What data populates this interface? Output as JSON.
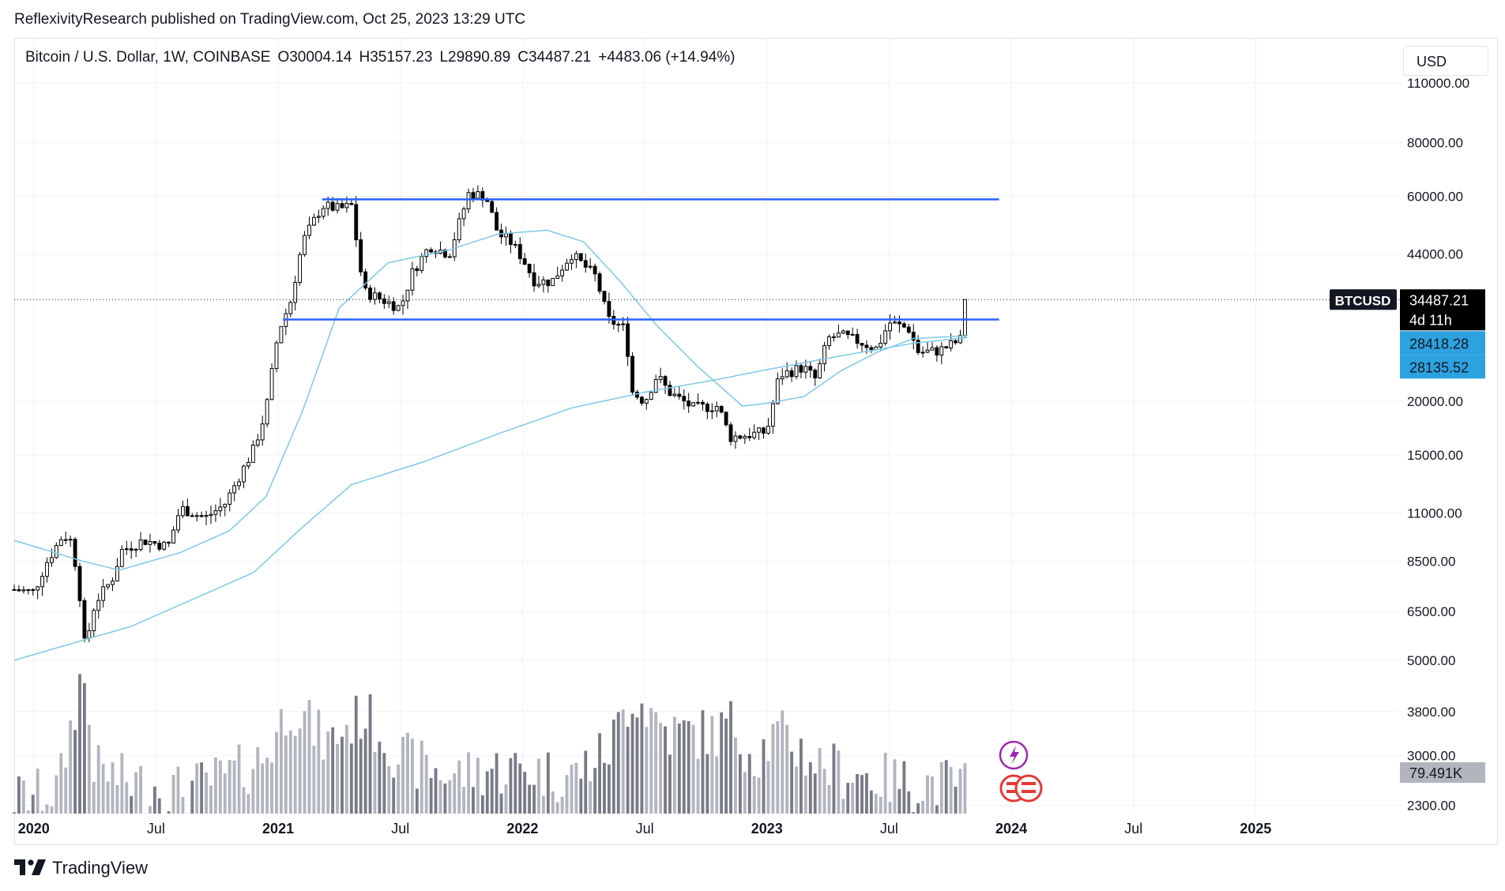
{
  "header": {
    "published_by": "ReflexivityResearch published on TradingView.com, Oct 25, 2023 13:29 UTC"
  },
  "legend": {
    "symbol": "Bitcoin / U.S. Dollar, 1W, COINBASE",
    "open": "O30004.14",
    "high": "H35157.23",
    "low": "L29890.89",
    "close": "C34487.21",
    "change": "+4483.06 (+14.94%)"
  },
  "currency_button": "USD",
  "price_tag": {
    "symbol": "BTCUSD",
    "price": "34487.21",
    "countdown": "4d 11h"
  },
  "ma_tags": [
    "28418.28",
    "28135.52"
  ],
  "volume_tag": "79.491K",
  "brand": "TradingView",
  "colors": {
    "up_candle": "#ffffff",
    "down_candle": "#000000",
    "ma_line": "#7cc9e8",
    "resistance_line": "#2962ff",
    "volume_up": "#b2b5be",
    "volume_down": "#787b86",
    "ma_tag_bg": "#2da2e0"
  },
  "chart_data": {
    "type": "candlestick",
    "title": "Bitcoin / U.S. Dollar, 1W, COINBASE",
    "scale": "log",
    "ylim": [
      2200,
      140000
    ],
    "y_ticks": [
      {
        "v": 110000,
        "l": "110000.00"
      },
      {
        "v": 80000,
        "l": "80000.00"
      },
      {
        "v": 60000,
        "l": "60000.00"
      },
      {
        "v": 44000,
        "l": "44000.00"
      },
      {
        "v": 20000,
        "l": "20000.00"
      },
      {
        "v": 15000,
        "l": "15000.00"
      },
      {
        "v": 11000,
        "l": "11000.00"
      },
      {
        "v": 8500,
        "l": "8500.00"
      },
      {
        "v": 6500,
        "l": "6500.00"
      },
      {
        "v": 5000,
        "l": "5000.00"
      },
      {
        "v": 3800,
        "l": "3800.00"
      },
      {
        "v": 3000,
        "l": "3000.00"
      },
      {
        "v": 2300,
        "l": "2300.00"
      }
    ],
    "x_ticks": [
      {
        "t": 2020.0,
        "l": "2020",
        "bold": true
      },
      {
        "t": 2020.5,
        "l": "Jul",
        "bold": false
      },
      {
        "t": 2021.0,
        "l": "2021",
        "bold": true
      },
      {
        "t": 2021.5,
        "l": "Jul",
        "bold": false
      },
      {
        "t": 2022.0,
        "l": "2022",
        "bold": true
      },
      {
        "t": 2022.5,
        "l": "Jul",
        "bold": false
      },
      {
        "t": 2023.0,
        "l": "2023",
        "bold": true
      },
      {
        "t": 2023.5,
        "l": "Jul",
        "bold": false
      },
      {
        "t": 2024.0,
        "l": "2024",
        "bold": true
      },
      {
        "t": 2024.5,
        "l": "Jul",
        "bold": false
      },
      {
        "t": 2025.0,
        "l": "2025",
        "bold": true
      }
    ],
    "close_anchors": [
      [
        2019.92,
        7300
      ],
      [
        2020.0,
        7200
      ],
      [
        2020.05,
        8400
      ],
      [
        2020.12,
        9800
      ],
      [
        2020.15,
        9500
      ],
      [
        2020.18,
        7900
      ],
      [
        2020.21,
        5300
      ],
      [
        2020.25,
        6800
      ],
      [
        2020.32,
        7700
      ],
      [
        2020.36,
        9000
      ],
      [
        2020.45,
        9500
      ],
      [
        2020.55,
        9200
      ],
      [
        2020.6,
        11300
      ],
      [
        2020.7,
        10700
      ],
      [
        2020.78,
        11500
      ],
      [
        2020.85,
        13700
      ],
      [
        2020.9,
        15500
      ],
      [
        2020.95,
        19000
      ],
      [
        2021.0,
        29000
      ],
      [
        2021.05,
        34000
      ],
      [
        2021.1,
        47000
      ],
      [
        2021.18,
        57000
      ],
      [
        2021.25,
        56000
      ],
      [
        2021.3,
        57000
      ],
      [
        2021.35,
        36000
      ],
      [
        2021.4,
        35000
      ],
      [
        2021.5,
        33000
      ],
      [
        2021.55,
        40000
      ],
      [
        2021.62,
        46000
      ],
      [
        2021.7,
        44000
      ],
      [
        2021.78,
        61000
      ],
      [
        2021.85,
        60000
      ],
      [
        2021.9,
        49000
      ],
      [
        2021.95,
        47000
      ],
      [
        2022.0,
        43000
      ],
      [
        2022.05,
        38000
      ],
      [
        2022.12,
        38000
      ],
      [
        2022.2,
        44000
      ],
      [
        2022.3,
        39000
      ],
      [
        2022.35,
        31000
      ],
      [
        2022.42,
        29500
      ],
      [
        2022.45,
        21000
      ],
      [
        2022.5,
        20000
      ],
      [
        2022.55,
        23000
      ],
      [
        2022.6,
        21000
      ],
      [
        2022.7,
        19300
      ],
      [
        2022.8,
        19500
      ],
      [
        2022.85,
        16500
      ],
      [
        2022.95,
        16800
      ],
      [
        2023.0,
        17000
      ],
      [
        2023.05,
        23000
      ],
      [
        2023.15,
        24000
      ],
      [
        2023.2,
        22500
      ],
      [
        2023.25,
        28000
      ],
      [
        2023.3,
        28500
      ],
      [
        2023.38,
        27500
      ],
      [
        2023.45,
        26500
      ],
      [
        2023.5,
        30500
      ],
      [
        2023.58,
        29500
      ],
      [
        2023.62,
        26000
      ],
      [
        2023.7,
        26200
      ],
      [
        2023.75,
        27000
      ],
      [
        2023.8,
        28000
      ],
      [
        2023.82,
        34487
      ]
    ],
    "volume_anchors": [
      [
        2019.92,
        2400
      ],
      [
        2020.1,
        2500
      ],
      [
        2020.2,
        4800
      ],
      [
        2020.25,
        2800
      ],
      [
        2020.4,
        2600
      ],
      [
        2020.6,
        2500
      ],
      [
        2020.8,
        2700
      ],
      [
        2020.95,
        3000
      ],
      [
        2021.05,
        4000
      ],
      [
        2021.2,
        3200
      ],
      [
        2021.35,
        3800
      ],
      [
        2021.5,
        3000
      ],
      [
        2021.7,
        2700
      ],
      [
        2021.85,
        2800
      ],
      [
        2022.0,
        2800
      ],
      [
        2022.2,
        2700
      ],
      [
        2022.35,
        3100
      ],
      [
        2022.45,
        4200
      ],
      [
        2022.6,
        3400
      ],
      [
        2022.8,
        3400
      ],
      [
        2022.85,
        3600
      ],
      [
        2022.95,
        3000
      ],
      [
        2023.05,
        3400
      ],
      [
        2023.2,
        2900
      ],
      [
        2023.4,
        2700
      ],
      [
        2023.6,
        2600
      ],
      [
        2023.8,
        2600
      ]
    ],
    "ma_short_anchors": [
      [
        2019.92,
        9500
      ],
      [
        2020.2,
        8500
      ],
      [
        2020.35,
        8100
      ],
      [
        2020.6,
        8900
      ],
      [
        2020.8,
        10000
      ],
      [
        2020.95,
        12000
      ],
      [
        2021.1,
        19000
      ],
      [
        2021.25,
        33000
      ],
      [
        2021.45,
        42000
      ],
      [
        2021.7,
        45000
      ],
      [
        2021.9,
        49000
      ],
      [
        2022.1,
        50000
      ],
      [
        2022.25,
        47000
      ],
      [
        2022.4,
        38000
      ],
      [
        2022.55,
        30000
      ],
      [
        2022.72,
        24000
      ],
      [
        2022.9,
        19500
      ],
      [
        2023.0,
        19800
      ],
      [
        2023.15,
        20500
      ],
      [
        2023.3,
        23500
      ],
      [
        2023.45,
        26000
      ],
      [
        2023.6,
        28000
      ],
      [
        2023.82,
        28418
      ]
    ],
    "ma_long_anchors": [
      [
        2019.92,
        5000
      ],
      [
        2020.4,
        6000
      ],
      [
        2020.9,
        8000
      ],
      [
        2021.1,
        10200
      ],
      [
        2021.3,
        12800
      ],
      [
        2021.6,
        14500
      ],
      [
        2021.9,
        16800
      ],
      [
        2022.2,
        19300
      ],
      [
        2022.5,
        21000
      ],
      [
        2022.8,
        22500
      ],
      [
        2023.0,
        23700
      ],
      [
        2023.3,
        25500
      ],
      [
        2023.6,
        27300
      ],
      [
        2023.82,
        28135
      ]
    ],
    "horizontal_levels": [
      {
        "price": 59000,
        "from": 2021.18,
        "to": 2023.95
      },
      {
        "price": 31000,
        "from": 2021.02,
        "to": 2023.95
      }
    ],
    "last_price_line": 34487.21
  }
}
